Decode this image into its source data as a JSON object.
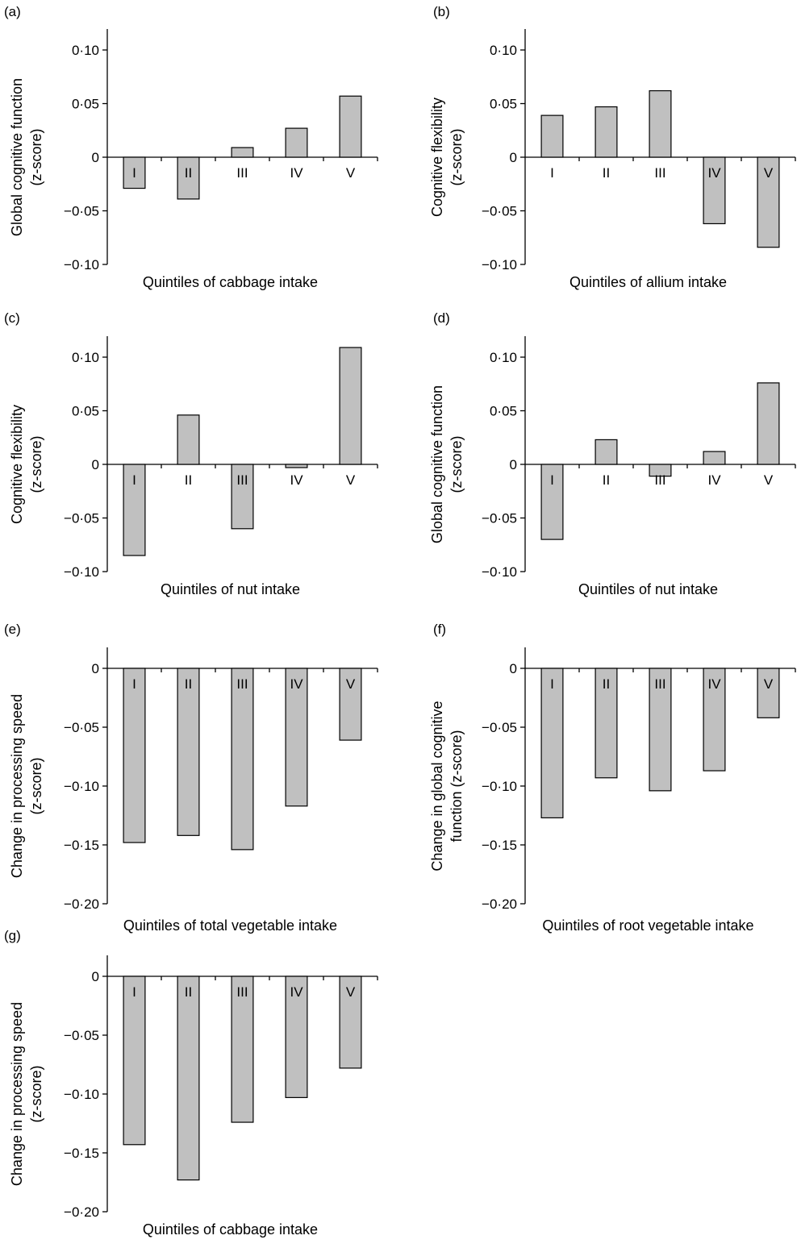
{
  "chart_data": [
    {
      "panel_label": "(a)",
      "type": "bar",
      "categories": [
        "I",
        "II",
        "III",
        "IV",
        "V"
      ],
      "values": [
        -0.029,
        -0.039,
        0.009,
        0.027,
        0.057
      ],
      "ylim": [
        -0.1,
        0.1
      ],
      "yticks": [
        0.1,
        0.05,
        0,
        -0.05,
        -0.1
      ],
      "ytick_labels": [
        "0·10",
        "0·05",
        "0",
        "−0·05",
        "−0·10"
      ],
      "ylabel_line1": "Global cognitive function",
      "ylabel_line2": "(z-score)",
      "xlabel": "Quintiles of cabbage intake",
      "bar_color": "#c0c0c0"
    },
    {
      "panel_label": "(b)",
      "type": "bar",
      "categories": [
        "I",
        "II",
        "III",
        "IV",
        "V"
      ],
      "values": [
        0.039,
        0.047,
        0.062,
        -0.062,
        -0.084
      ],
      "ylim": [
        -0.1,
        0.1
      ],
      "yticks": [
        0.1,
        0.05,
        0,
        -0.05,
        -0.1
      ],
      "ytick_labels": [
        "0·10",
        "0·05",
        "0",
        "−0·05",
        "−0·10"
      ],
      "ylabel_line1": "Cognitive flexibility",
      "ylabel_line2": "(z-score)",
      "xlabel": "Quintiles of allium intake",
      "bar_color": "#c0c0c0"
    },
    {
      "panel_label": "(c)",
      "type": "bar",
      "categories": [
        "I",
        "II",
        "III",
        "IV",
        "V"
      ],
      "values": [
        -0.085,
        0.046,
        -0.06,
        -0.003,
        0.109
      ],
      "ylim": [
        -0.1,
        0.1
      ],
      "yticks": [
        0.1,
        0.05,
        0,
        -0.05,
        -0.1
      ],
      "ytick_labels": [
        "0·10",
        "0·05",
        "0",
        "−0·05",
        "−0·10"
      ],
      "ylabel_line1": "Cognitive flexibility",
      "ylabel_line2": "(z-score)",
      "xlabel": "Quintiles of nut intake",
      "bar_color": "#c0c0c0"
    },
    {
      "panel_label": "(d)",
      "type": "bar",
      "categories": [
        "I",
        "II",
        "III",
        "IV",
        "V"
      ],
      "values": [
        -0.07,
        0.023,
        -0.011,
        0.012,
        0.076
      ],
      "ylim": [
        -0.1,
        0.1
      ],
      "yticks": [
        0.1,
        0.05,
        0,
        -0.05,
        -0.1
      ],
      "ytick_labels": [
        "0·10",
        "0·05",
        "0",
        "−0·05",
        "−0·10"
      ],
      "ylabel_line1": "Global cognitive function",
      "ylabel_line2": "(z-score)",
      "xlabel": "Quintiles of nut intake",
      "bar_color": "#c0c0c0"
    },
    {
      "panel_label": "(e)",
      "type": "bar",
      "categories": [
        "I",
        "II",
        "III",
        "IV",
        "V"
      ],
      "values": [
        -0.148,
        -0.142,
        -0.154,
        -0.117,
        -0.061
      ],
      "ylim": [
        -0.2,
        0
      ],
      "yticks": [
        0,
        -0.05,
        -0.1,
        -0.15,
        -0.2
      ],
      "ytick_labels": [
        "0",
        "−0·05",
        "−0·10",
        "−0·15",
        "−0·20"
      ],
      "ylabel_line1": "Change in processing speed",
      "ylabel_line2": "(z-score)",
      "xlabel": "Quintiles of total vegetable intake",
      "bar_color": "#c0c0c0"
    },
    {
      "panel_label": "(f)",
      "type": "bar",
      "categories": [
        "I",
        "II",
        "III",
        "IV",
        "V"
      ],
      "values": [
        -0.127,
        -0.093,
        -0.104,
        -0.087,
        -0.042
      ],
      "ylim": [
        -0.2,
        0
      ],
      "yticks": [
        0,
        -0.05,
        -0.1,
        -0.15,
        -0.2
      ],
      "ytick_labels": [
        "0",
        "−0·05",
        "−0·10",
        "−0·15",
        "−0·20"
      ],
      "ylabel_line1": "Change in global cognitive",
      "ylabel_line2": "function (z-score)",
      "xlabel": "Quintiles of root vegetable intake",
      "bar_color": "#c0c0c0"
    },
    {
      "panel_label": "(g)",
      "type": "bar",
      "categories": [
        "I",
        "II",
        "III",
        "IV",
        "V"
      ],
      "values": [
        -0.143,
        -0.173,
        -0.124,
        -0.103,
        -0.078
      ],
      "ylim": [
        -0.2,
        0
      ],
      "yticks": [
        0,
        -0.05,
        -0.1,
        -0.15,
        -0.2
      ],
      "ytick_labels": [
        "0",
        "−0·05",
        "−0·10",
        "−0·15",
        "−0·20"
      ],
      "ylabel_line1": "Change in processing speed",
      "ylabel_line2": "(z-score)",
      "xlabel": "Quintiles of cabbage intake",
      "bar_color": "#c0c0c0"
    }
  ]
}
